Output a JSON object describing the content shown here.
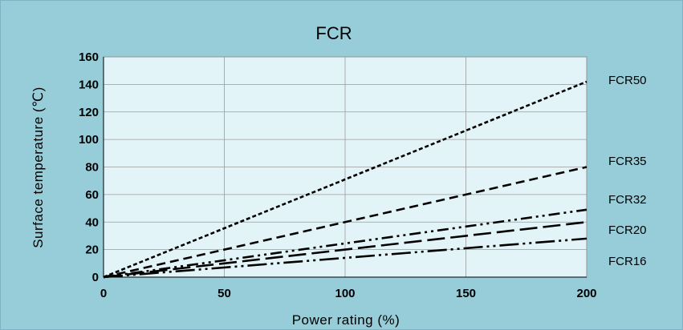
{
  "colors": {
    "outer_background": "#96cdd8",
    "plot_background": "#e3f4f8",
    "gridline": "#9a9a9a",
    "series_line": "#000000"
  },
  "chart_data": {
    "type": "line",
    "title": "FCR",
    "xlabel": "Power rating (%)",
    "ylabel": "Surface temperature (℃)",
    "xlim": [
      0,
      200
    ],
    "ylim": [
      0,
      160
    ],
    "x_ticks": [
      0,
      50,
      100,
      150,
      200
    ],
    "y_ticks": [
      0,
      20,
      40,
      60,
      80,
      100,
      120,
      140,
      160
    ],
    "grid": true,
    "legend": "labels at right end of each series",
    "series": [
      {
        "name": "FCR50",
        "style": "short-dash",
        "x": [
          0,
          200
        ],
        "y": [
          0,
          142
        ]
      },
      {
        "name": "FCR35",
        "style": "dash",
        "x": [
          0,
          200
        ],
        "y": [
          0,
          80
        ]
      },
      {
        "name": "FCR32",
        "style": "dash-dot-dot",
        "x": [
          0,
          200
        ],
        "y": [
          0,
          49
        ]
      },
      {
        "name": "FCR20",
        "style": "long-dash",
        "x": [
          0,
          200
        ],
        "y": [
          0,
          40
        ]
      },
      {
        "name": "FCR16",
        "style": "long-dash-dot-dot",
        "x": [
          0,
          200
        ],
        "y": [
          0,
          28
        ]
      }
    ]
  }
}
